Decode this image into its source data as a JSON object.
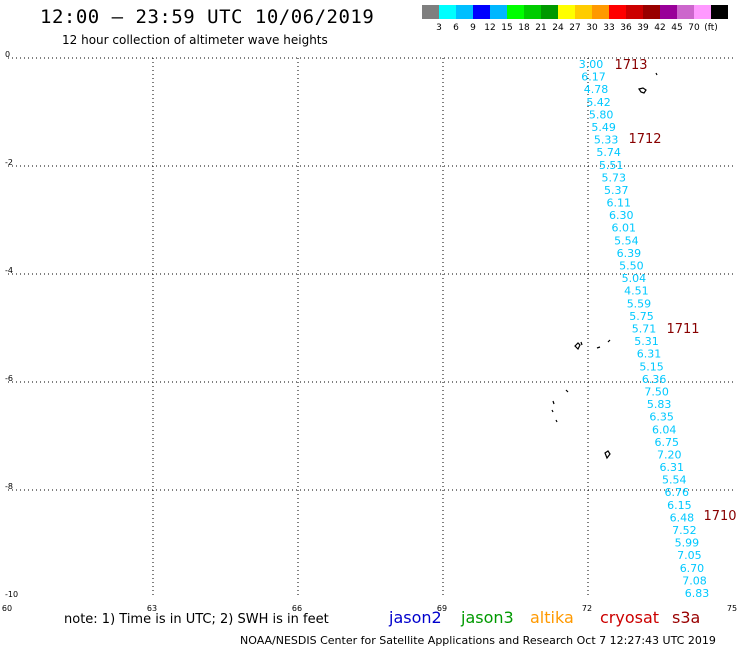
{
  "header": {
    "title": "12:00 – 23:59 UTC 10/06/2019",
    "subtitle": "12 hour collection of altimeter wave heights"
  },
  "color_scale": {
    "colors": [
      "#7f7f7f",
      "#00ffff",
      "#00bfff",
      "#0000ff",
      "#00b7ff",
      "#00ff00",
      "#00cc00",
      "#009900",
      "#ffff00",
      "#ffcc00",
      "#ff9900",
      "#ff0000",
      "#cc0000",
      "#990000",
      "#990099",
      "#cc66cc",
      "#ff99ff",
      "#000000"
    ],
    "labels": [
      "3",
      "6",
      "9",
      "12",
      "15",
      "18",
      "21",
      "24",
      "27",
      "30",
      "33",
      "36",
      "39",
      "42",
      "45",
      "70",
      "(ft)"
    ]
  },
  "axes": {
    "x_ticks": [
      "60",
      "63",
      "66",
      "69",
      "72",
      "75"
    ],
    "y_ticks": [
      "0",
      "-2",
      "-4",
      "-6",
      "-8",
      "-10"
    ]
  },
  "time_labels": [
    "1713",
    "1712",
    "1711",
    "1710"
  ],
  "wave_heights": [
    "3.00",
    "6.17",
    "4.78",
    "5.42",
    "5.80",
    "5.49",
    "5.33",
    "5.74",
    "5.51",
    "5.73",
    "5.37",
    "6.11",
    "6.30",
    "6.01",
    "5.54",
    "6.39",
    "5.50",
    "5.04",
    "4.51",
    "5.59",
    "5.75",
    "5.71",
    "5.31",
    "6.31",
    "5.15",
    "6.36",
    "7.50",
    "5.83",
    "6.35",
    "6.04",
    "6.75",
    "7.20",
    "6.31",
    "5.54",
    "6.76",
    "6.15",
    "6.48",
    "7.52",
    "5.99",
    "7.05",
    "6.70",
    "7.08",
    "6.83"
  ],
  "footer": {
    "note": "note: 1) Time is in UTC; 2) SWH is in feet",
    "satellites": [
      {
        "name": "jason2",
        "color": "#0000cc"
      },
      {
        "name": "jason3",
        "color": "#009900"
      },
      {
        "name": "altika",
        "color": "#ff9900"
      },
      {
        "name": "cryosat",
        "color": "#cc0000"
      },
      {
        "name": "s3a",
        "color": "#990000"
      }
    ],
    "credit": "NOAA/NESDIS Center for Satellite Applications and Research    Oct  7 12:27:43 UTC 2019"
  }
}
